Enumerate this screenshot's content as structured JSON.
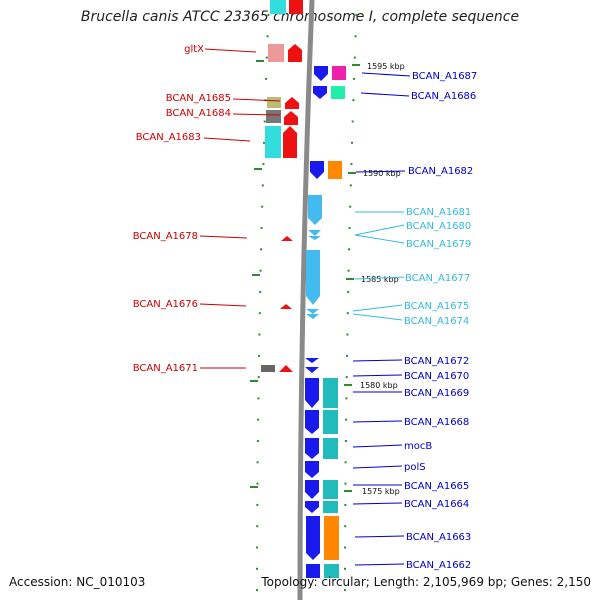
{
  "title": "Brucella canis ATCC 23365 chromosome I, complete sequence",
  "footer": {
    "accession": "Accession: NC_010103",
    "summary": "Topology: circular; Length: 2,105,969 bp; Genes: 2,150"
  },
  "colors": {
    "backbone": "#8a8a8a",
    "label_red": "#cc0000",
    "label_blue": "#0000cc",
    "label_cyan": "#33bbdd",
    "tick_green": "#2e8b2e"
  },
  "kbp_labels": [
    "1595 kbp",
    "1590 kbp",
    "1585 kbp",
    "1580 kbp",
    "1575 kbp"
  ],
  "left_labels": [
    "gltX",
    "BCAN_A1685",
    "BCAN_A1684",
    "BCAN_A1683",
    "BCAN_A1678",
    "BCAN_A1676",
    "BCAN_A1671"
  ],
  "right_labels": [
    "BCAN_A1687",
    "BCAN_A1686",
    "BCAN_A1682",
    "BCAN_A1681",
    "BCAN_A1680",
    "BCAN_A1679",
    "BCAN_A1677",
    "BCAN_A1675",
    "BCAN_A1674",
    "BCAN_A1672",
    "BCAN_A1670",
    "BCAN_A1669",
    "BCAN_A1668",
    "mocB",
    "polS",
    "BCAN_A1665",
    "BCAN_A1664",
    "BCAN_A1663",
    "BCAN_A1662"
  ]
}
